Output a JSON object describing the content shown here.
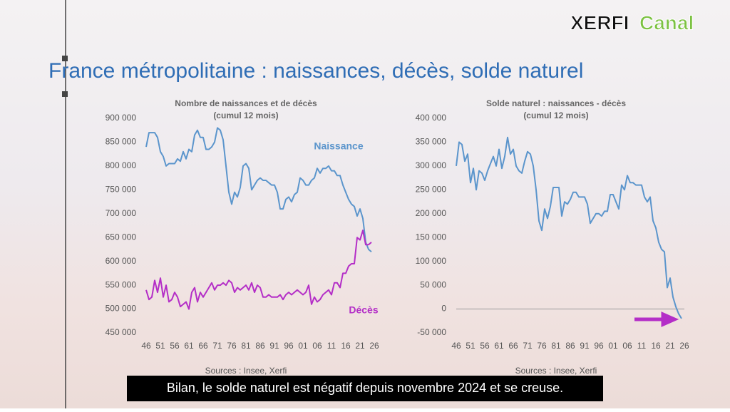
{
  "logo": {
    "part1": "XERFI",
    "part2": "Canal"
  },
  "title": "France métropolitaine : naissances, décès, solde naturel",
  "caption": "Bilan, le solde naturel est négatif depuis novembre 2024 et se creuse.",
  "chart_data": [
    {
      "type": "line",
      "title": "Nombre de naissances et de décès",
      "subtitle": "(cumul 12 mois)",
      "source": "Sources : Insee, Xerfi",
      "categories": [
        "46",
        null,
        null,
        null,
        null,
        "51",
        null,
        null,
        null,
        null,
        "56",
        null,
        null,
        null,
        null,
        "61",
        null,
        null,
        null,
        null,
        "66",
        null,
        null,
        null,
        null,
        "71",
        null,
        null,
        null,
        null,
        "76",
        null,
        null,
        null,
        null,
        "81",
        null,
        null,
        null,
        null,
        "86",
        null,
        null,
        null,
        null,
        "91",
        null,
        null,
        null,
        null,
        "96",
        null,
        null,
        null,
        null,
        "01",
        null,
        null,
        null,
        null,
        "06",
        null,
        null,
        null,
        null,
        "11",
        null,
        null,
        null,
        null,
        "16",
        null,
        null,
        null,
        null,
        "21",
        null,
        null,
        null,
        null,
        "26"
      ],
      "ylim": [
        450000,
        900000
      ],
      "yticks": [
        {
          "value": 450000,
          "label": "450 000"
        },
        {
          "value": 500000,
          "label": "500 000"
        },
        {
          "value": 550000,
          "label": "550 000"
        },
        {
          "value": 600000,
          "label": "600 000"
        },
        {
          "value": 650000,
          "label": "650 000"
        },
        {
          "value": 700000,
          "label": "700 000"
        },
        {
          "value": 750000,
          "label": "750 000"
        },
        {
          "value": 800000,
          "label": "800 000"
        },
        {
          "value": 850000,
          "label": "850 000"
        },
        {
          "value": 900000,
          "label": "900 000"
        }
      ],
      "series": [
        {
          "name": "Naissance",
          "color": "#5b95cc",
          "values": [
            840000,
            870000,
            870000,
            870000,
            860000,
            830000,
            820000,
            800000,
            805000,
            805000,
            805000,
            815000,
            810000,
            830000,
            815000,
            835000,
            830000,
            865000,
            875000,
            860000,
            860000,
            835000,
            835000,
            840000,
            850000,
            880000,
            875000,
            855000,
            800000,
            745000,
            720000,
            745000,
            735000,
            755000,
            800000,
            805000,
            795000,
            750000,
            760000,
            770000,
            775000,
            770000,
            770000,
            765000,
            760000,
            760000,
            745000,
            710000,
            710000,
            730000,
            735000,
            725000,
            740000,
            745000,
            775000,
            770000,
            760000,
            760000,
            770000,
            775000,
            795000,
            785000,
            795000,
            795000,
            800000,
            790000,
            790000,
            780000,
            780000,
            760000,
            745000,
            730000,
            720000,
            715000,
            695000,
            710000,
            690000,
            640000,
            625000,
            620000,
            null
          ]
        },
        {
          "name": "Décès",
          "color": "#b42ec7",
          "values": [
            540000,
            520000,
            525000,
            560000,
            535000,
            565000,
            525000,
            550000,
            515000,
            520000,
            535000,
            525000,
            505000,
            510000,
            515000,
            500000,
            535000,
            545000,
            515000,
            535000,
            525000,
            535000,
            545000,
            555000,
            540000,
            550000,
            550000,
            555000,
            550000,
            560000,
            555000,
            535000,
            545000,
            540000,
            545000,
            550000,
            540000,
            555000,
            535000,
            550000,
            545000,
            525000,
            525000,
            530000,
            525000,
            525000,
            525000,
            530000,
            520000,
            530000,
            535000,
            530000,
            535000,
            540000,
            535000,
            530000,
            535000,
            550000,
            510000,
            525000,
            515000,
            520000,
            530000,
            535000,
            540000,
            530000,
            555000,
            555000,
            545000,
            575000,
            575000,
            590000,
            595000,
            595000,
            650000,
            645000,
            665000,
            635000,
            635000,
            640000,
            null
          ]
        }
      ]
    },
    {
      "type": "line",
      "title": "Solde naturel : naissances - décès",
      "subtitle": "(cumul 12 mois)",
      "source": "Sources : Insee, Xerfi",
      "categories": [
        "46",
        null,
        null,
        null,
        null,
        "51",
        null,
        null,
        null,
        null,
        "56",
        null,
        null,
        null,
        null,
        "61",
        null,
        null,
        null,
        null,
        "66",
        null,
        null,
        null,
        null,
        "71",
        null,
        null,
        null,
        null,
        "76",
        null,
        null,
        null,
        null,
        "81",
        null,
        null,
        null,
        null,
        "86",
        null,
        null,
        null,
        null,
        "91",
        null,
        null,
        null,
        null,
        "96",
        null,
        null,
        null,
        null,
        "01",
        null,
        null,
        null,
        null,
        "06",
        null,
        null,
        null,
        null,
        "11",
        null,
        null,
        null,
        null,
        "16",
        null,
        null,
        null,
        null,
        "21",
        null,
        null,
        null,
        null,
        "26"
      ],
      "ylim": [
        -50000,
        400000
      ],
      "yticks": [
        {
          "value": -50000,
          "label": "-50 000"
        },
        0,
        {
          "value": 50000,
          "label": "50 000"
        },
        {
          "value": 100000,
          "label": "100 000"
        },
        {
          "value": 150000,
          "label": "150 000"
        },
        {
          "value": 200000,
          "label": "200 000"
        },
        {
          "value": 250000,
          "label": "250 000"
        },
        {
          "value": 300000,
          "label": "300 000"
        },
        {
          "value": 350000,
          "label": "350 000"
        },
        {
          "value": 400000,
          "label": "400 000"
        }
      ],
      "zero_line": true,
      "series": [
        {
          "color": "#5b95cc",
          "values": [
            300000,
            350000,
            345000,
            310000,
            325000,
            265000,
            295000,
            250000,
            290000,
            285000,
            270000,
            290000,
            305000,
            320000,
            300000,
            335000,
            295000,
            320000,
            360000,
            325000,
            335000,
            300000,
            290000,
            285000,
            310000,
            330000,
            325000,
            300000,
            250000,
            185000,
            165000,
            210000,
            190000,
            215000,
            255000,
            255000,
            255000,
            195000,
            225000,
            220000,
            230000,
            245000,
            245000,
            235000,
            235000,
            235000,
            220000,
            180000,
            190000,
            200000,
            200000,
            195000,
            205000,
            205000,
            240000,
            240000,
            225000,
            210000,
            260000,
            250000,
            280000,
            265000,
            265000,
            260000,
            260000,
            260000,
            235000,
            225000,
            235000,
            185000,
            170000,
            140000,
            125000,
            120000,
            45000,
            65000,
            25000,
            5000,
            -10000,
            -20000,
            null
          ]
        }
      ]
    }
  ]
}
